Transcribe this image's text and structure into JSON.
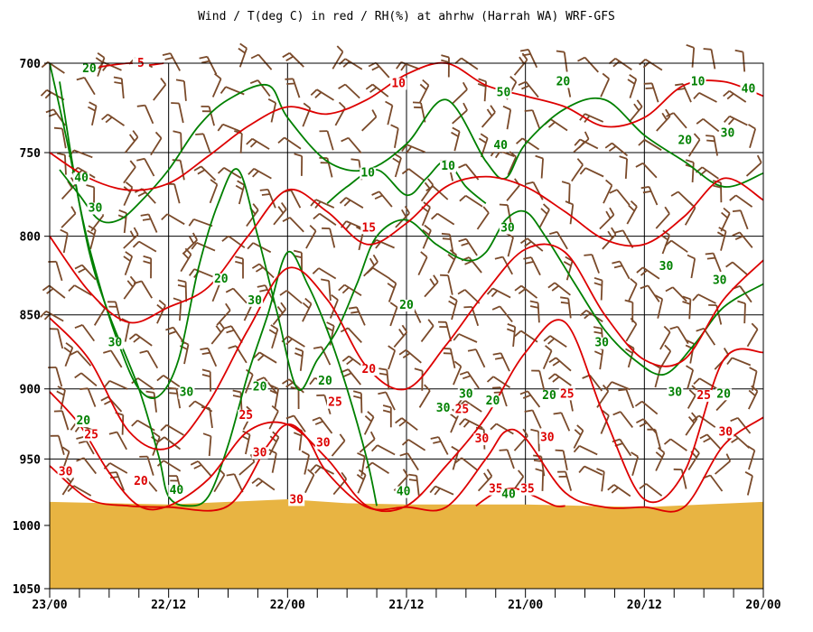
{
  "chart_data": {
    "type": "line",
    "title": "Wind / T(deg C) in red / RH(%) at ahrhw (Harrah WA)  WRF-GFS",
    "x_tick_labels": [
      "23/00",
      "22/12",
      "22/00",
      "21/12",
      "21/00",
      "20/12",
      "20/00"
    ],
    "x_tick_times": [
      0,
      12,
      24,
      36,
      48,
      60,
      72
    ],
    "x_minor_step": 3,
    "x_range": [
      0,
      72
    ],
    "y_tick_labels": [
      "700",
      "750",
      "800",
      "850",
      "900",
      "950",
      "1000",
      "1050"
    ],
    "y_tick_values": [
      700,
      750,
      800,
      850,
      900,
      950,
      1000,
      1050
    ],
    "y_range": [
      700,
      1050
    ],
    "y_scale": "log-pressure",
    "grid": true,
    "colors": {
      "temperature": "#dd0000",
      "rh": "#008000",
      "wind": "#7a4a2a",
      "ground": "#e8b442"
    },
    "ground_surface": {
      "t": [
        0,
        6,
        12,
        18,
        24,
        30,
        36,
        42,
        48,
        54,
        60,
        66,
        72
      ],
      "p": [
        982,
        983,
        984,
        982,
        980,
        983,
        984,
        984,
        984,
        985,
        986,
        984,
        982
      ]
    },
    "temperature_isotherms": [
      {
        "value": 5,
        "t": [
          5,
          8,
          10,
          11.5
        ],
        "p": [
          702,
          700,
          701,
          700
        ]
      },
      {
        "value": 10,
        "t": [
          0,
          4,
          8,
          12,
          16,
          20,
          24,
          28,
          32,
          36,
          40,
          44,
          48,
          52,
          56,
          60,
          64,
          68,
          72
        ],
        "p": [
          750,
          765,
          772,
          768,
          752,
          735,
          724,
          728,
          720,
          706,
          700,
          712,
          718,
          724,
          735,
          730,
          712,
          710,
          718
        ]
      },
      {
        "value": 15,
        "t": [
          0,
          4,
          8,
          12,
          16,
          20,
          24,
          28,
          32,
          36,
          40,
          44,
          48,
          52,
          56,
          60,
          64,
          68,
          72
        ],
        "p": [
          800,
          835,
          855,
          845,
          832,
          800,
          772,
          785,
          805,
          792,
          770,
          764,
          770,
          785,
          802,
          805,
          788,
          765,
          778
        ]
      },
      {
        "value": 20,
        "t": [
          0,
          4,
          8,
          12,
          16,
          20,
          24,
          28,
          32,
          36,
          40,
          44,
          48,
          52,
          56,
          60,
          64,
          68,
          72
        ],
        "p": [
          852,
          880,
          930,
          942,
          910,
          860,
          820,
          840,
          885,
          900,
          870,
          835,
          808,
          810,
          850,
          880,
          880,
          840,
          815
        ]
      },
      {
        "value": 25,
        "t": [
          0,
          3,
          6,
          9,
          12,
          16,
          20,
          24,
          28,
          32,
          36,
          40,
          44,
          48,
          52,
          56,
          60,
          64,
          68,
          72
        ],
        "p": [
          902,
          925,
          960,
          985,
          985,
          965,
          930,
          925,
          950,
          985,
          985,
          955,
          920,
          875,
          855,
          920,
          980,
          960,
          880,
          875
        ]
      },
      {
        "value": 30,
        "t": [
          0,
          4,
          8,
          12,
          18,
          22,
          24,
          26,
          28,
          32,
          36,
          40,
          44,
          46,
          48,
          52,
          56,
          60,
          64,
          68,
          72
        ],
        "p": [
          955,
          980,
          985,
          986,
          985,
          940,
          925,
          935,
          960,
          986,
          986,
          986,
          950,
          930,
          935,
          975,
          986,
          986,
          986,
          940,
          920
        ]
      },
      {
        "value": 35,
        "t": [
          43,
          45,
          47,
          49,
          51,
          52
        ],
        "p": [
          985,
          975,
          972,
          978,
          985,
          985
        ]
      }
    ],
    "rh_contours": [
      {
        "value": 20,
        "t": [
          0,
          2,
          4,
          6,
          9,
          11,
          12,
          14,
          16,
          18,
          20,
          22,
          24,
          26,
          28,
          30,
          32,
          33
        ],
        "p": [
          700,
          750,
          810,
          850,
          900,
          948,
          978,
          985,
          978,
          940,
          890,
          850,
          810,
          830,
          860,
          900,
          950,
          985
        ]
      },
      {
        "value": 30,
        "t": [
          1,
          3,
          5,
          7,
          9,
          11,
          13,
          15,
          17,
          19,
          21,
          23,
          25,
          27,
          29,
          31,
          33,
          36,
          39,
          42,
          44,
          46,
          48,
          50,
          53,
          56,
          59,
          62,
          65,
          68,
          72
        ],
        "p": [
          710,
          780,
          830,
          870,
          900,
          905,
          880,
          820,
          780,
          760,
          800,
          850,
          900,
          880,
          860,
          830,
          800,
          790,
          805,
          815,
          810,
          790,
          785,
          800,
          830,
          860,
          880,
          890,
          870,
          845,
          830
        ]
      },
      {
        "value": 40,
        "t": [
          1,
          3,
          5,
          7,
          9,
          12,
          15,
          18,
          22,
          24,
          28,
          32,
          36,
          40,
          44,
          46,
          48,
          52,
          56,
          60,
          64,
          68,
          72
        ],
        "p": [
          760,
          775,
          790,
          790,
          780,
          760,
          735,
          720,
          712,
          730,
          755,
          760,
          745,
          720,
          755,
          765,
          745,
          725,
          720,
          740,
          755,
          770,
          762
        ]
      },
      {
        "value": 10,
        "t": [
          28,
          30,
          33,
          36,
          38,
          40,
          42,
          44
        ],
        "p": [
          780,
          770,
          760,
          775,
          765,
          755,
          770,
          780
        ]
      }
    ],
    "contour_labels": [
      {
        "text": "5",
        "color": "temperature",
        "t": 9.2,
        "p": 702
      },
      {
        "text": "10",
        "color": "temperature",
        "t": 35.2,
        "p": 713
      },
      {
        "text": "15",
        "color": "temperature",
        "t": 32.2,
        "p": 797
      },
      {
        "text": "20",
        "color": "temperature",
        "t": 32.2,
        "p": 889
      },
      {
        "text": "25",
        "color": "temperature",
        "t": 4.2,
        "p": 935
      },
      {
        "text": "25",
        "color": "temperature",
        "t": 19.8,
        "p": 921
      },
      {
        "text": "25",
        "color": "temperature",
        "t": 28.8,
        "p": 912
      },
      {
        "text": "25",
        "color": "temperature",
        "t": 41.6,
        "p": 917
      },
      {
        "text": "25",
        "color": "temperature",
        "t": 52.2,
        "p": 906
      },
      {
        "text": "25",
        "color": "temperature",
        "t": 66.0,
        "p": 907
      },
      {
        "text": "30",
        "color": "temperature",
        "t": 1.6,
        "p": 962
      },
      {
        "text": "30",
        "color": "temperature",
        "t": 21.2,
        "p": 948
      },
      {
        "text": "30",
        "color": "temperature",
        "t": 27.6,
        "p": 941
      },
      {
        "text": "30",
        "color": "temperature",
        "t": 43.6,
        "p": 938
      },
      {
        "text": "30",
        "color": "temperature",
        "t": 50.2,
        "p": 937
      },
      {
        "text": "30",
        "color": "temperature",
        "t": 68.2,
        "p": 933
      },
      {
        "text": "30",
        "color": "temperature",
        "t": 24.9,
        "p": 983
      },
      {
        "text": "20",
        "color": "temperature",
        "t": 9.2,
        "p": 969
      },
      {
        "text": "35",
        "color": "temperature",
        "t": 45.0,
        "p": 975
      },
      {
        "text": "35",
        "color": "temperature",
        "t": 48.2,
        "p": 975
      },
      {
        "text": "20",
        "color": "rh",
        "t": 4.0,
        "p": 705
      },
      {
        "text": "20",
        "color": "rh",
        "t": 17.3,
        "p": 829
      },
      {
        "text": "20",
        "color": "rh",
        "t": 21.2,
        "p": 901
      },
      {
        "text": "20",
        "color": "rh",
        "t": 27.8,
        "p": 897
      },
      {
        "text": "20",
        "color": "rh",
        "t": 36.0,
        "p": 846
      },
      {
        "text": "20",
        "color": "rh",
        "t": 44.7,
        "p": 911
      },
      {
        "text": "20",
        "color": "rh",
        "t": 50.4,
        "p": 907
      },
      {
        "text": "20",
        "color": "rh",
        "t": 51.8,
        "p": 712
      },
      {
        "text": "20",
        "color": "rh",
        "t": 64.1,
        "p": 745
      },
      {
        "text": "20",
        "color": "rh",
        "t": 68.0,
        "p": 906
      },
      {
        "text": "20",
        "color": "rh",
        "t": 3.4,
        "p": 925
      },
      {
        "text": "30",
        "color": "rh",
        "t": 4.6,
        "p": 785
      },
      {
        "text": "30",
        "color": "rh",
        "t": 6.6,
        "p": 871
      },
      {
        "text": "30",
        "color": "rh",
        "t": 13.8,
        "p": 905
      },
      {
        "text": "30",
        "color": "rh",
        "t": 20.7,
        "p": 843
      },
      {
        "text": "30",
        "color": "rh",
        "t": 39.7,
        "p": 916
      },
      {
        "text": "30",
        "color": "rh",
        "t": 42.0,
        "p": 906
      },
      {
        "text": "30",
        "color": "rh",
        "t": 46.2,
        "p": 797
      },
      {
        "text": "30",
        "color": "rh",
        "t": 55.7,
        "p": 871
      },
      {
        "text": "30",
        "color": "rh",
        "t": 63.1,
        "p": 905
      },
      {
        "text": "30",
        "color": "rh",
        "t": 67.6,
        "p": 830
      },
      {
        "text": "30",
        "color": "rh",
        "t": 68.4,
        "p": 741
      },
      {
        "text": "40",
        "color": "rh",
        "t": 3.2,
        "p": 767
      },
      {
        "text": "40",
        "color": "rh",
        "t": 45.5,
        "p": 748
      },
      {
        "text": "40",
        "color": "rh",
        "t": 70.5,
        "p": 716
      },
      {
        "text": "40",
        "color": "rh",
        "t": 12.8,
        "p": 976
      },
      {
        "text": "40",
        "color": "rh",
        "t": 35.7,
        "p": 977
      },
      {
        "text": "40",
        "color": "rh",
        "t": 46.3,
        "p": 979
      },
      {
        "text": "50",
        "color": "rh",
        "t": 45.8,
        "p": 718
      },
      {
        "text": "10",
        "color": "rh",
        "t": 32.1,
        "p": 764
      },
      {
        "text": "10",
        "color": "rh",
        "t": 40.2,
        "p": 760
      },
      {
        "text": "10",
        "color": "rh",
        "t": 65.4,
        "p": 712
      },
      {
        "text": "30",
        "color": "rh",
        "t": 62.2,
        "p": 821
      }
    ]
  }
}
